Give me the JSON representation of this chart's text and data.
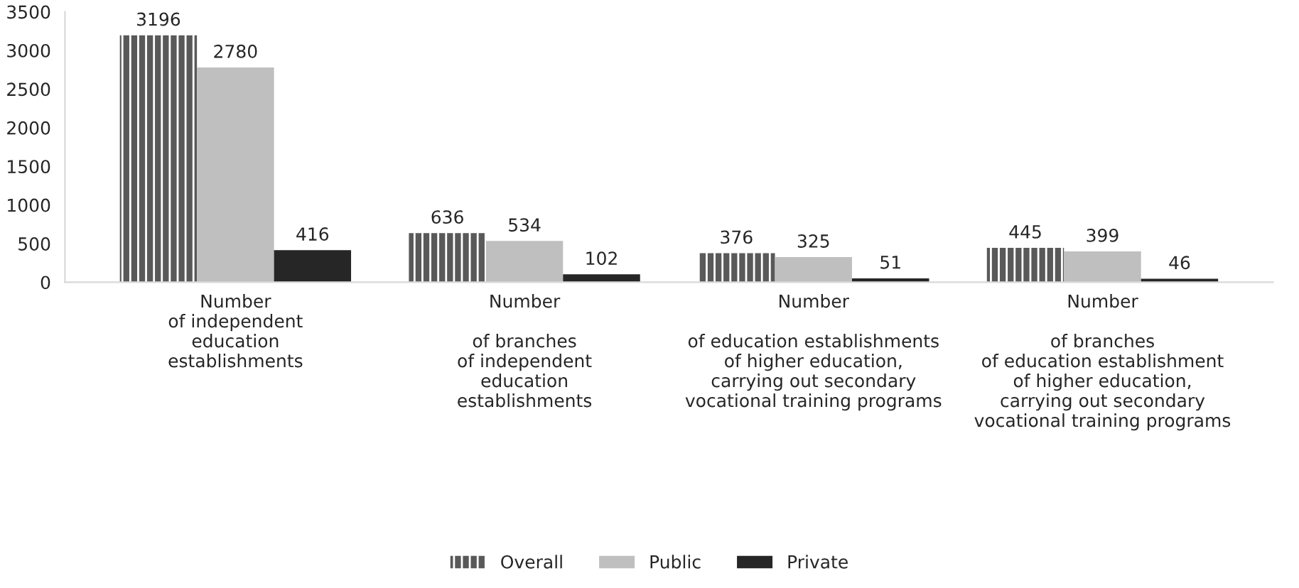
{
  "chart_data": {
    "type": "bar",
    "categories": [
      "Number\nof independent\neducation\nestablishments",
      "Number\n\nof branches\nof independent\neducation\nestablishments",
      "Number\n\nof education establishments\nof higher education,\ncarrying out secondary\nvocational training programs",
      "Number\n\nof branches\nof education establishment\nof higher education,\ncarrying out secondary\nvocational training programs"
    ],
    "series": [
      {
        "name": "Overall",
        "color": "#595959",
        "values": [
          3196,
          636,
          376,
          445
        ]
      },
      {
        "name": "Public",
        "color": "#bfbfbf",
        "values": [
          2780,
          534,
          325,
          399
        ]
      },
      {
        "name": "Private",
        "color": "#262626",
        "values": [
          416,
          102,
          51,
          46
        ]
      }
    ],
    "ylim": [
      0,
      3500
    ],
    "yticks": [
      0,
      500,
      1000,
      1500,
      2000,
      2500,
      3000,
      3500
    ],
    "data_labels": true,
    "legend": "bottom",
    "grid": false
  }
}
